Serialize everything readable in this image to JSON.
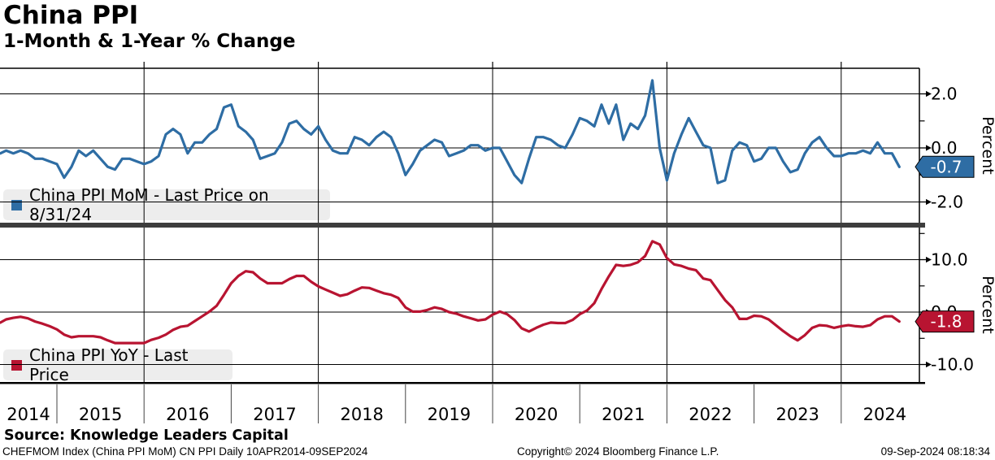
{
  "header": {
    "title": "China PPI",
    "subtitle": "1-Month & 1-Year % Change"
  },
  "chart_data": [
    {
      "type": "line",
      "name": "China PPI MoM",
      "panel": "top",
      "color": "#2e6da4",
      "legend_label": "China PPI MoM - Last Price on 8/31/24",
      "last_price": -0.7,
      "last_price_label": "-0.7",
      "ylabel": "Percent",
      "yticks_major": [
        2.0,
        0.0,
        -2.0
      ],
      "yticks_minor": [
        1.0,
        -1.0
      ],
      "ylim": [
        -2.9,
        2.95
      ],
      "x_start": "2014-04",
      "x_end": "2024-08",
      "frequency": "monthly",
      "values": [
        -0.2,
        -0.1,
        -0.2,
        -0.1,
        -0.2,
        -0.4,
        -0.4,
        -0.5,
        -0.6,
        -1.1,
        -0.7,
        -0.1,
        -0.3,
        -0.1,
        -0.4,
        -0.7,
        -0.8,
        -0.4,
        -0.4,
        -0.5,
        -0.6,
        -0.5,
        -0.3,
        0.5,
        0.7,
        0.5,
        -0.2,
        0.2,
        0.2,
        0.5,
        0.7,
        1.5,
        1.6,
        0.8,
        0.6,
        0.3,
        -0.4,
        -0.3,
        -0.2,
        0.2,
        0.9,
        1.0,
        0.7,
        0.5,
        0.8,
        0.3,
        -0.1,
        -0.2,
        -0.2,
        0.4,
        0.3,
        0.1,
        0.4,
        0.6,
        0.4,
        -0.2,
        -1.0,
        -0.6,
        -0.1,
        0.1,
        0.3,
        0.2,
        -0.3,
        -0.2,
        -0.1,
        0.1,
        0.1,
        -0.1,
        0.0,
        0.0,
        -0.5,
        -1.0,
        -1.3,
        -0.4,
        0.4,
        0.4,
        0.3,
        0.1,
        0.0,
        0.5,
        1.1,
        1.0,
        0.8,
        1.6,
        0.9,
        1.6,
        0.3,
        0.9,
        0.7,
        1.2,
        2.5,
        0.0,
        -1.2,
        -0.2,
        0.5,
        1.1,
        0.6,
        0.1,
        0.0,
        -1.3,
        -1.2,
        -0.1,
        0.2,
        0.1,
        -0.5,
        -0.4,
        0.0,
        0.0,
        -0.5,
        -0.9,
        -0.8,
        -0.2,
        0.2,
        0.4,
        0.0,
        -0.3,
        -0.3,
        -0.2,
        -0.2,
        -0.1,
        -0.2,
        0.2,
        -0.2,
        -0.2,
        -0.7
      ]
    },
    {
      "type": "line",
      "name": "China PPI YoY",
      "panel": "bottom",
      "color": "#b81431",
      "legend_label": "China PPI YoY - Last Price",
      "last_price": -1.8,
      "last_price_label": "-1.8",
      "ylabel": "Percent",
      "yticks_major": [
        10.0,
        0.0,
        -10.0
      ],
      "yticks_minor": [
        15.0,
        5.0,
        -5.0
      ],
      "ylim": [
        -13.3,
        16.4
      ],
      "x_start": "2014-04",
      "x_end": "2024-08",
      "frequency": "monthly",
      "values": [
        -2.0,
        -1.4,
        -1.1,
        -0.9,
        -1.2,
        -1.8,
        -2.2,
        -2.7,
        -3.3,
        -4.3,
        -4.8,
        -4.6,
        -4.6,
        -4.6,
        -4.8,
        -5.4,
        -5.9,
        -5.9,
        -5.9,
        -5.9,
        -5.9,
        -5.3,
        -4.9,
        -4.3,
        -3.4,
        -2.8,
        -2.6,
        -1.7,
        -0.8,
        0.1,
        1.2,
        3.3,
        5.5,
        6.9,
        7.8,
        7.6,
        6.4,
        5.5,
        5.5,
        5.5,
        6.3,
        6.9,
        6.9,
        5.8,
        4.9,
        4.3,
        3.7,
        3.1,
        3.4,
        4.1,
        4.7,
        4.6,
        4.1,
        3.6,
        3.3,
        2.7,
        0.9,
        0.1,
        0.1,
        0.4,
        0.9,
        0.6,
        0.0,
        -0.3,
        -0.8,
        -1.2,
        -1.6,
        -1.4,
        -0.5,
        0.1,
        -0.4,
        -1.5,
        -3.1,
        -3.7,
        -3.0,
        -2.4,
        -2.0,
        -2.1,
        -2.1,
        -1.5,
        -0.4,
        0.3,
        1.7,
        4.4,
        6.8,
        9.0,
        8.8,
        9.0,
        9.5,
        10.7,
        13.5,
        12.9,
        10.3,
        9.1,
        8.8,
        8.3,
        8.0,
        6.4,
        6.1,
        4.2,
        2.3,
        0.9,
        -1.3,
        -1.3,
        -0.7,
        -0.8,
        -1.4,
        -2.5,
        -3.6,
        -4.6,
        -5.4,
        -4.4,
        -3.0,
        -2.5,
        -2.6,
        -3.0,
        -2.7,
        -2.5,
        -2.7,
        -2.8,
        -2.5,
        -1.4,
        -0.8,
        -0.8,
        -1.8
      ]
    }
  ],
  "xaxis": {
    "years": [
      "2014",
      "2015",
      "2016",
      "2017",
      "2018",
      "2019",
      "2020",
      "2021",
      "2022",
      "2023",
      "2024"
    ]
  },
  "footer": {
    "source": "Source: Knowledge Leaders Capital",
    "meta": "CHEFMOM Index (China PPI MoM) CN PPI  Daily 10APR2014-09SEP2024",
    "copyright": "Copyright© 2024 Bloomberg Finance L.P.",
    "timestamp": "09-Sep-2024 08:18:34"
  }
}
